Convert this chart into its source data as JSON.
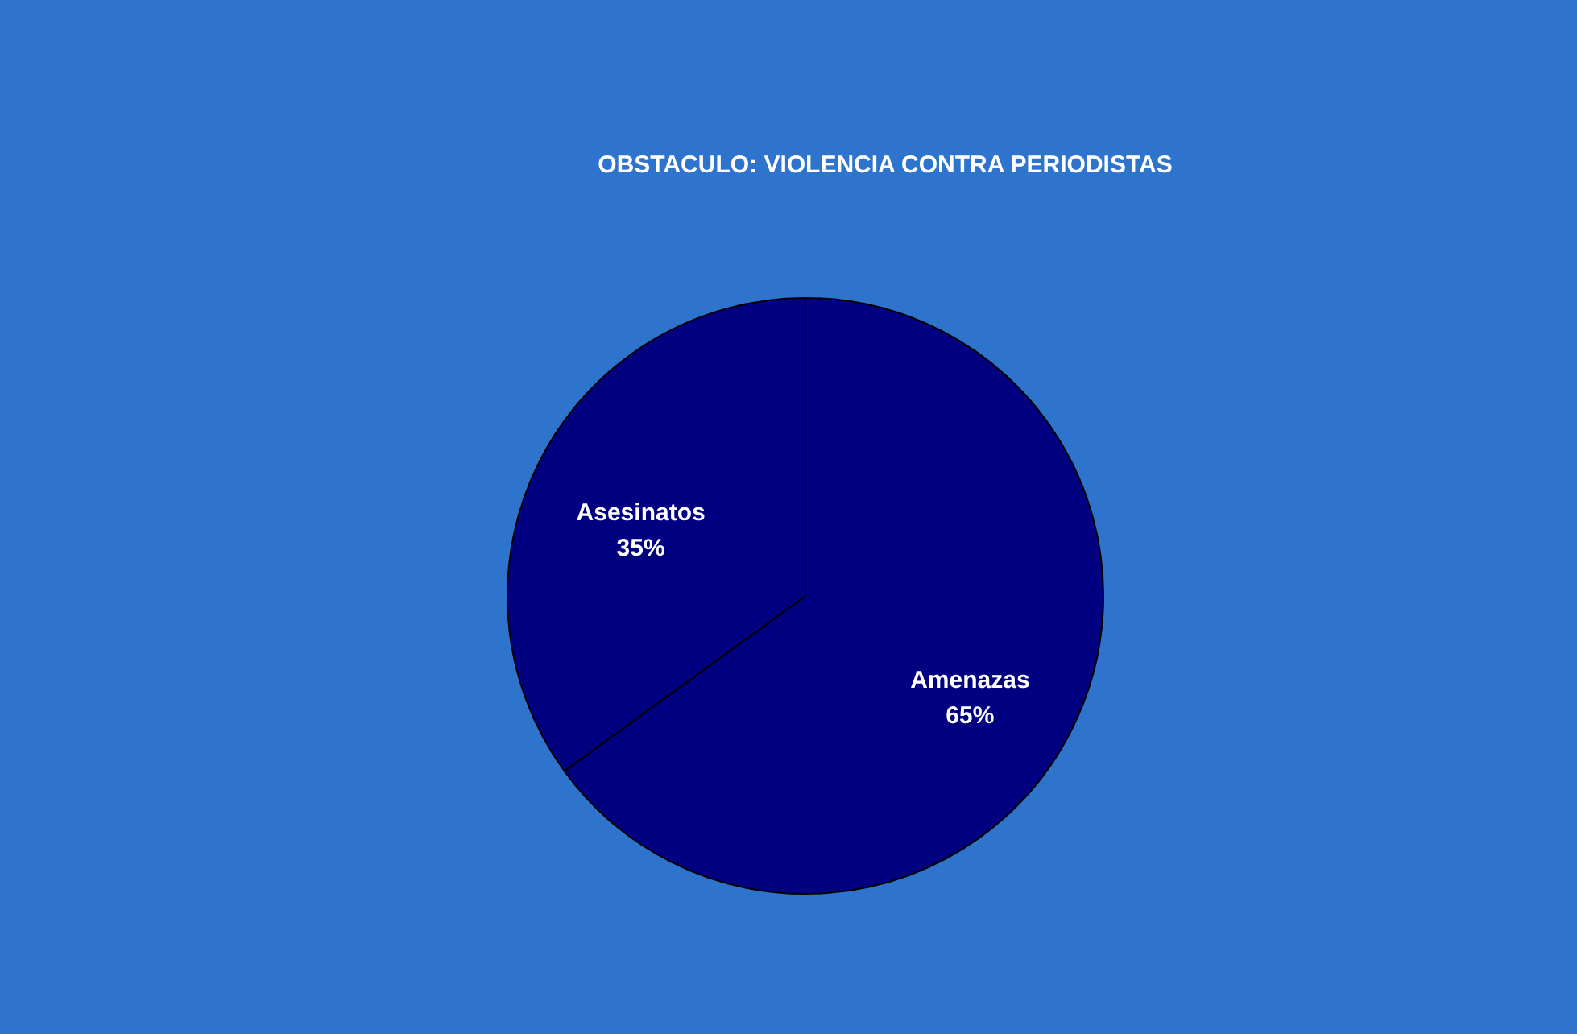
{
  "chart_data": {
    "type": "pie",
    "title": "OBSTACULO: VIOLENCIA CONTRA PERIODISTAS",
    "categories": [
      "Amenazas",
      "Asesinatos"
    ],
    "values": [
      65,
      35
    ],
    "value_labels": [
      "65%",
      "35%"
    ],
    "colors": [
      "#000080",
      "#000080"
    ]
  }
}
